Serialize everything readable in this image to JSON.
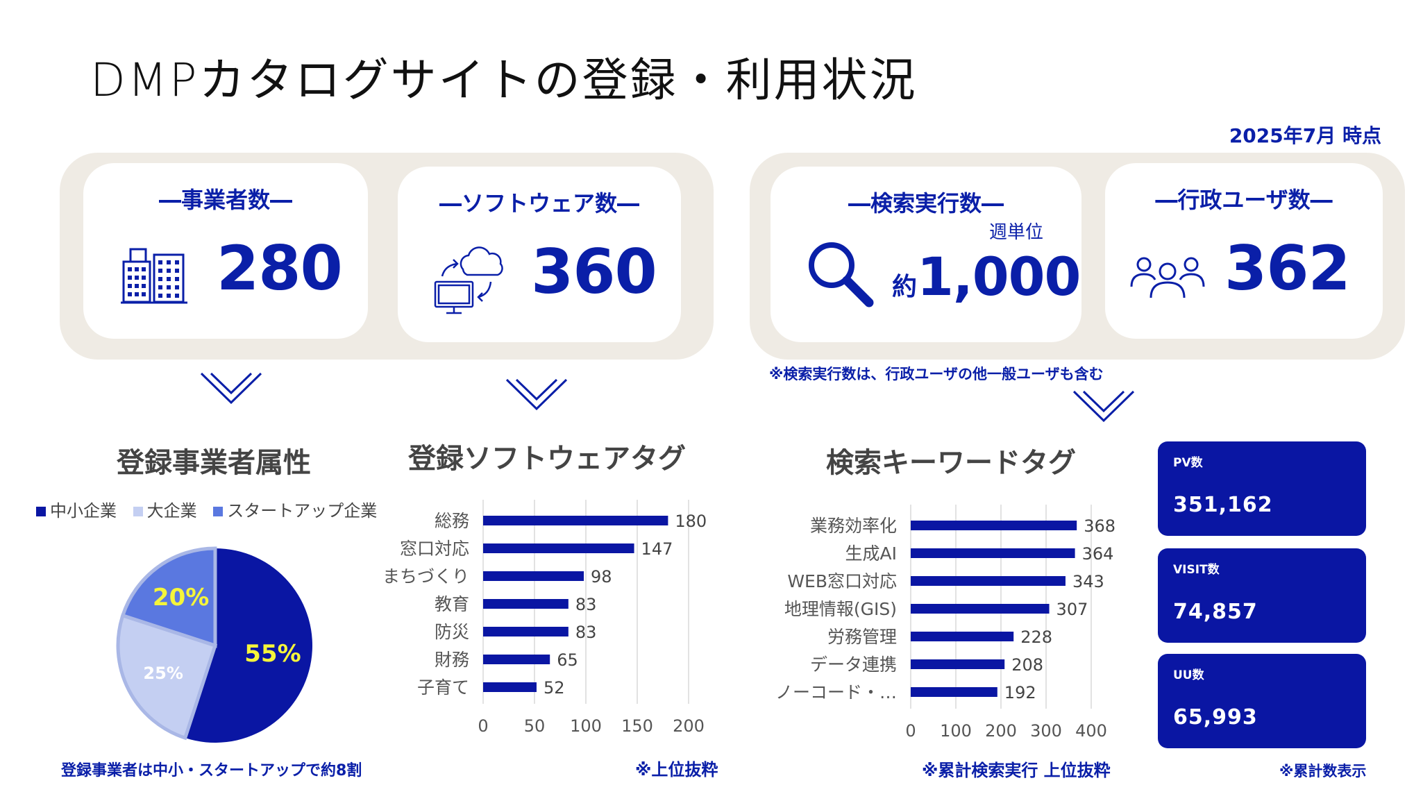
{
  "title": "DMPカタログサイトの登録・利用状況",
  "as_of": "2025年7月 時点",
  "cards": {
    "businesses": {
      "title": "―事業者数―",
      "value": "280",
      "icon": "building-icon"
    },
    "software": {
      "title": "―ソフトウェア数―",
      "value": "360",
      "icon": "cloud-monitor-sync-icon"
    },
    "searches": {
      "title": "―検索実行数―",
      "unit": "週単位",
      "prefix": "約",
      "value": "1,000",
      "icon": "search-icon"
    },
    "gov_users": {
      "title": "―行政ユーザ数―",
      "value": "362",
      "icon": "users-group-icon"
    }
  },
  "search_note": "※検索実行数は、行政ユーザの他一般ユーザも含む",
  "colors": {
    "primary": "#0a1fa8",
    "dark_navy": "#0a16a3",
    "light_blue": "#c4cff2",
    "mid_blue": "#5a78e0",
    "panel_bg": "#efebe4",
    "highlight": "#f5f53a"
  },
  "sections": {
    "business_attr": {
      "title": "登録事業者属性",
      "note": "登録事業者は中小・スタートアップで約8割"
    },
    "software_tags": {
      "title": "登録ソフトウェアタグ",
      "note": "※上位抜粋"
    },
    "keyword_tags": {
      "title": "検索キーワードタグ",
      "note": "※累計検索実行 上位抜粋"
    },
    "stats": {
      "note": "※累計数表示"
    }
  },
  "stats": [
    {
      "label": "PV数",
      "value": "351,162"
    },
    {
      "label": "VISIT数",
      "value": "74,857"
    },
    {
      "label": "UU数",
      "value": "65,993"
    }
  ],
  "chart_data": [
    {
      "type": "pie",
      "legend_position": "top",
      "categories": [
        "中小企業",
        "大企業",
        "スタートアップ企業"
      ],
      "values": [
        55,
        25,
        20
      ],
      "labels": [
        "55%",
        "25%",
        "20%"
      ],
      "colors": [
        "#0a16a3",
        "#c4cff2",
        "#5a78e0"
      ]
    },
    {
      "type": "bar",
      "orientation": "horizontal",
      "categories": [
        "総務",
        "窓口対応",
        "まちづくり",
        "教育",
        "防災",
        "財務",
        "子育て"
      ],
      "values": [
        180,
        147,
        98,
        83,
        83,
        65,
        52
      ],
      "xlim": [
        0,
        200
      ],
      "xticks": [
        "0",
        "50",
        "100",
        "150",
        "200"
      ],
      "grid": true
    },
    {
      "type": "bar",
      "orientation": "horizontal",
      "categories": [
        "業務効率化",
        "生成AI",
        "WEB窓口対応",
        "地理情報(GIS)",
        "労務管理",
        "データ連携",
        "ノーコード・…"
      ],
      "values": [
        368,
        364,
        343,
        307,
        228,
        208,
        192
      ],
      "xlim": [
        0,
        400
      ],
      "xticks": [
        "0",
        "100",
        "200",
        "300",
        "400"
      ],
      "grid": true
    }
  ]
}
